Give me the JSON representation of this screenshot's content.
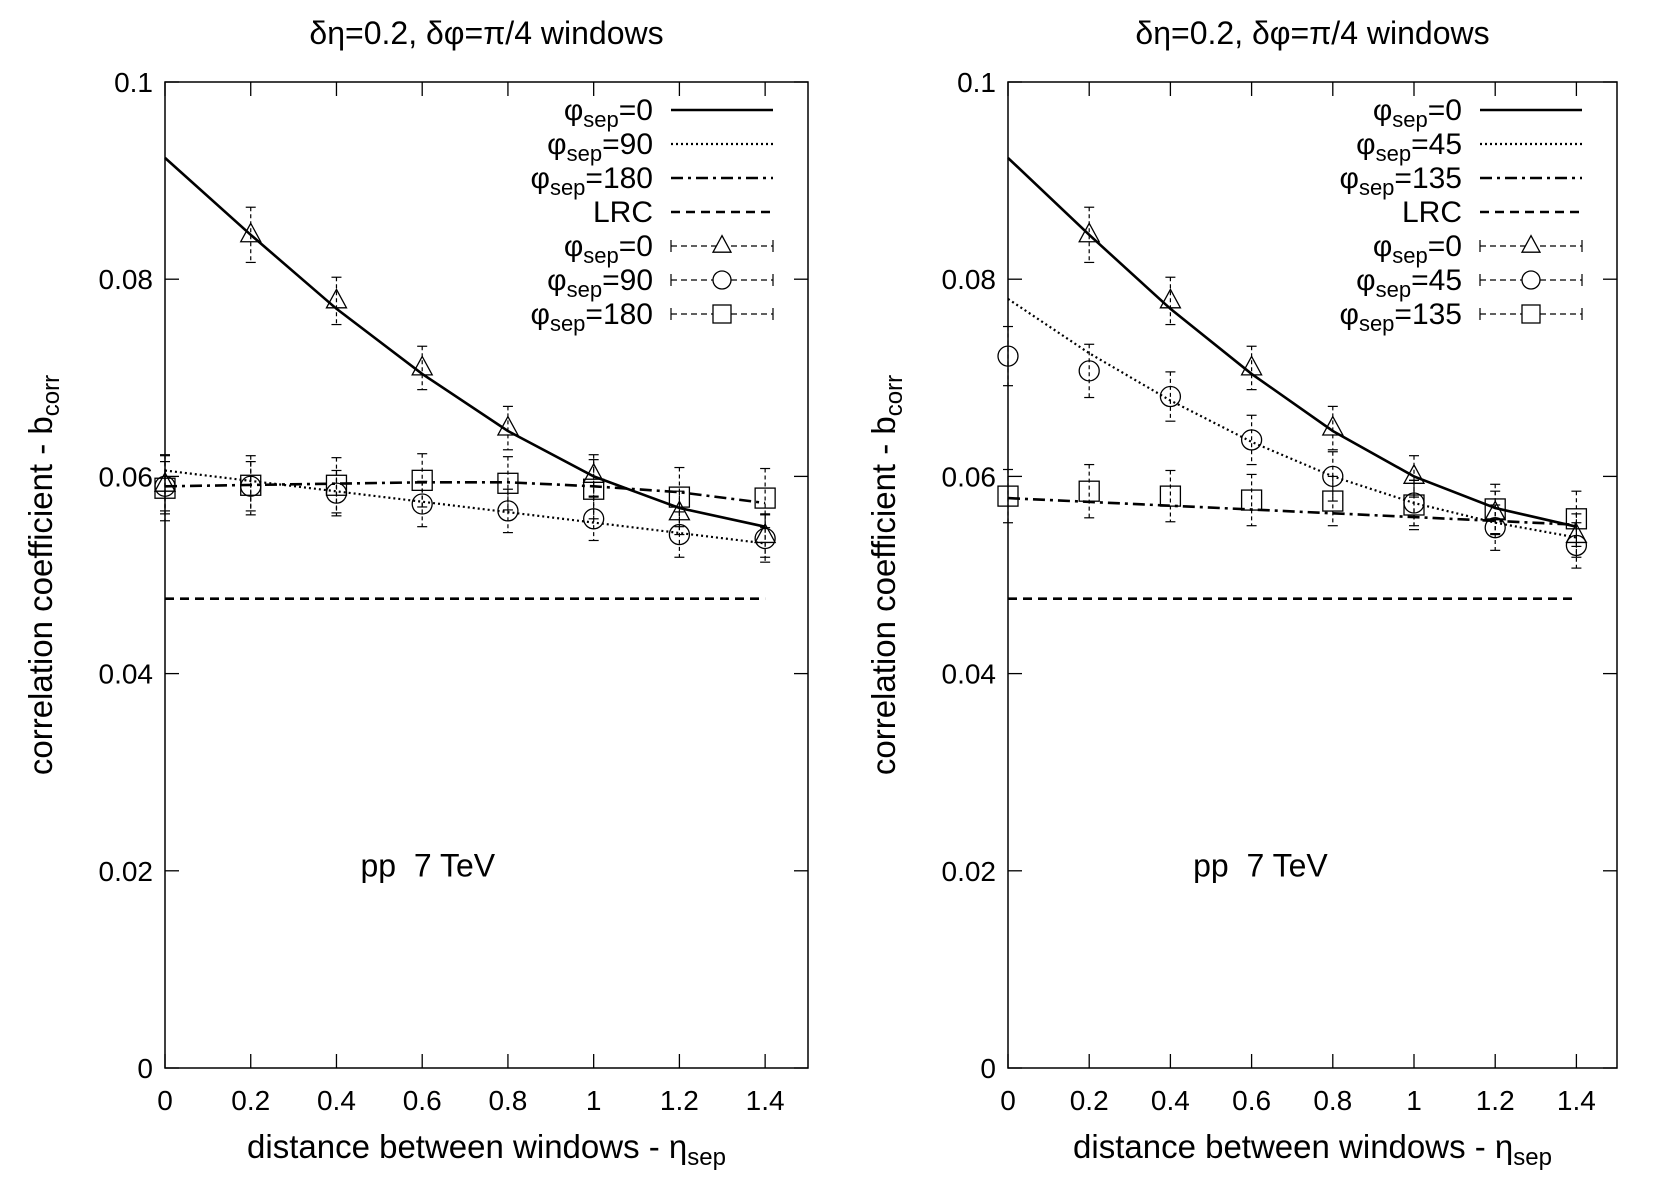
{
  "chart_data": [
    {
      "type": "line",
      "title": "δη=0.2, δφ=π/4 windows",
      "xlabel": "distance between windows - η",
      "xlabel_sub": "sep",
      "ylabel": "correlation coefficient - b",
      "ylabel_sub": "corr",
      "annotation": "pp  7 TeV",
      "xlim": [
        0,
        1.5
      ],
      "ylim": [
        0,
        0.1
      ],
      "xticks": [
        "0",
        "0.2",
        "0.4",
        "0.6",
        "0.8",
        "1",
        "1.2",
        "1.4"
      ],
      "yticks": [
        "0",
        "0.02",
        "0.04",
        "0.06",
        "0.08",
        "0.1"
      ],
      "legend_position": "top-right",
      "curves": [
        {
          "name_sym": "φ",
          "name_sub": "sep",
          "name_val": "=0",
          "style": "solid",
          "x": [
            0,
            0.2,
            0.4,
            0.6,
            0.8,
            1.0,
            1.2,
            1.4
          ],
          "y": [
            0.0923,
            0.0845,
            0.077,
            0.0704,
            0.0646,
            0.06,
            0.0568,
            0.0549
          ]
        },
        {
          "name_sym": "φ",
          "name_sub": "sep",
          "name_val": "=90",
          "style": "dotted",
          "x": [
            0,
            1.4
          ],
          "y": [
            0.0606,
            0.0532
          ]
        },
        {
          "name_sym": "φ",
          "name_sub": "sep",
          "name_val": "=180",
          "style": "dashdot",
          "x": [
            0,
            0.6,
            0.8,
            1.0,
            1.2,
            1.4
          ],
          "y": [
            0.059,
            0.0594,
            0.0594,
            0.059,
            0.0584,
            0.0573
          ]
        },
        {
          "name": "LRC",
          "style": "dashed",
          "x": [
            0,
            1.4
          ],
          "y": [
            0.0476,
            0.0476
          ]
        }
      ],
      "points": [
        {
          "name_sym": "φ",
          "name_sub": "sep",
          "name_val": "=0",
          "marker": "triangle",
          "x": [
            0,
            0.2,
            0.4,
            0.6,
            0.8,
            1.0,
            1.2,
            1.4
          ],
          "y": [
            0.0592,
            0.0845,
            0.0778,
            0.071,
            0.0649,
            0.0601,
            0.0563,
            0.054
          ],
          "err": [
            0.003,
            0.0028,
            0.0024,
            0.0022,
            0.0022,
            0.0021,
            0.0022,
            0.0022
          ]
        },
        {
          "name_sym": "φ",
          "name_sub": "sep",
          "name_val": "=90",
          "marker": "circle",
          "x": [
            0,
            0.2,
            0.4,
            0.6,
            0.8,
            1.0,
            1.2,
            1.4
          ],
          "y": [
            0.059,
            0.059,
            0.0583,
            0.0572,
            0.0565,
            0.0557,
            0.0541,
            0.0537
          ],
          "err": [
            0.0025,
            0.0025,
            0.0023,
            0.0023,
            0.0022,
            0.0022,
            0.0023,
            0.0024
          ]
        },
        {
          "name_sym": "φ",
          "name_sub": "sep",
          "name_val": "=180",
          "marker": "square",
          "x": [
            0,
            0.2,
            0.4,
            0.6,
            0.8,
            1.0,
            1.2,
            1.4
          ],
          "y": [
            0.0588,
            0.0591,
            0.0591,
            0.0596,
            0.0593,
            0.0587,
            0.0579,
            0.0578
          ],
          "err": [
            0.0033,
            0.003,
            0.0028,
            0.0027,
            0.0027,
            0.003,
            0.003,
            0.003
          ]
        }
      ]
    },
    {
      "type": "line",
      "title": "δη=0.2, δφ=π/4 windows",
      "xlabel": "distance between windows - η",
      "xlabel_sub": "sep",
      "ylabel": "correlation coefficient - b",
      "ylabel_sub": "corr",
      "annotation": "pp  7 TeV",
      "xlim": [
        0,
        1.5
      ],
      "ylim": [
        0,
        0.1
      ],
      "xticks": [
        "0",
        "0.2",
        "0.4",
        "0.6",
        "0.8",
        "1",
        "1.2",
        "1.4"
      ],
      "yticks": [
        "0",
        "0.02",
        "0.04",
        "0.06",
        "0.08",
        "0.1"
      ],
      "legend_position": "top-right",
      "curves": [
        {
          "name_sym": "φ",
          "name_sub": "sep",
          "name_val": "=0",
          "style": "solid",
          "x": [
            0,
            0.2,
            0.4,
            0.6,
            0.8,
            1.0,
            1.2,
            1.4
          ],
          "y": [
            0.0923,
            0.0845,
            0.077,
            0.0704,
            0.0646,
            0.06,
            0.0568,
            0.0549
          ]
        },
        {
          "name_sym": "φ",
          "name_sub": "sep",
          "name_val": "=45",
          "style": "dotted",
          "x": [
            0,
            0.2,
            0.4,
            0.6,
            0.8,
            1.0,
            1.2,
            1.4
          ],
          "y": [
            0.078,
            0.0725,
            0.0677,
            0.0635,
            0.06,
            0.0573,
            0.0553,
            0.0538
          ]
        },
        {
          "name_sym": "φ",
          "name_sub": "sep",
          "name_val": "=135",
          "style": "dashdot",
          "x": [
            0,
            1.4
          ],
          "y": [
            0.0578,
            0.0551
          ]
        },
        {
          "name": "LRC",
          "style": "dashed",
          "x": [
            0,
            1.4
          ],
          "y": [
            0.0476,
            0.0476
          ]
        }
      ],
      "points": [
        {
          "name_sym": "φ",
          "name_sub": "sep",
          "name_val": "=0",
          "marker": "triangle",
          "x": [
            0.2,
            0.4,
            0.6,
            0.8,
            1.0,
            1.2,
            1.4
          ],
          "y": [
            0.0845,
            0.0778,
            0.071,
            0.0649,
            0.06,
            0.0563,
            0.054
          ],
          "err": [
            0.0028,
            0.0024,
            0.0022,
            0.0022,
            0.0021,
            0.0022,
            0.0022
          ]
        },
        {
          "name_sym": "φ",
          "name_sub": "sep",
          "name_val": "=45",
          "marker": "circle",
          "x": [
            0,
            0.2,
            0.4,
            0.6,
            0.8,
            1.0,
            1.2,
            1.4
          ],
          "y": [
            0.0722,
            0.0707,
            0.0681,
            0.0637,
            0.06,
            0.0573,
            0.0548,
            0.053
          ],
          "err": [
            0.003,
            0.0027,
            0.0025,
            0.0025,
            0.0025,
            0.0023,
            0.0023,
            0.0023
          ]
        },
        {
          "name_sym": "φ",
          "name_sub": "sep",
          "name_val": "=135",
          "marker": "square",
          "x": [
            0,
            0.2,
            0.4,
            0.6,
            0.8,
            1.0,
            1.2,
            1.4
          ],
          "y": [
            0.058,
            0.0585,
            0.058,
            0.0576,
            0.0575,
            0.0571,
            0.0567,
            0.0557
          ],
          "err": [
            0.0027,
            0.0027,
            0.0026,
            0.0026,
            0.0025,
            0.0025,
            0.0025,
            0.0028
          ]
        }
      ]
    }
  ]
}
